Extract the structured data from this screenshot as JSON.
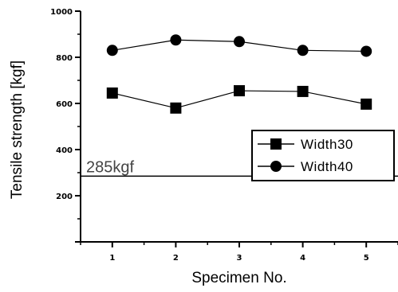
{
  "chart_data": {
    "type": "line",
    "title": "",
    "xlabel": "Specimen No.",
    "ylabel": "Tensile strength [kgf]",
    "categories": [
      "1",
      "2",
      "3",
      "4",
      "5"
    ],
    "xlim": [
      0.5,
      5.5
    ],
    "ylim": [
      0,
      1000
    ],
    "y_ticks": [
      0,
      200,
      400,
      600,
      800,
      1000
    ],
    "y_tick_labels": [
      "",
      "200",
      "400",
      "600",
      "800",
      "1000"
    ],
    "grid": false,
    "legend_position": "center-right",
    "series": [
      {
        "name": "Width30",
        "marker": "square",
        "color": "#000000",
        "values": [
          645,
          580,
          655,
          652,
          597
        ]
      },
      {
        "name": "Width40",
        "marker": "circle",
        "color": "#000000",
        "values": [
          830,
          875,
          868,
          830,
          826
        ]
      }
    ],
    "reference_line": {
      "value": 285,
      "label": "285kgf",
      "color": "#000000"
    }
  }
}
